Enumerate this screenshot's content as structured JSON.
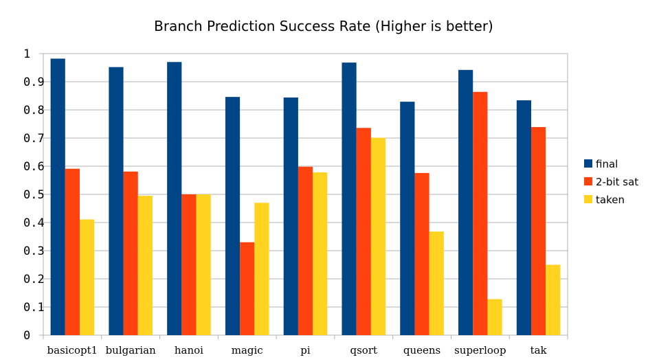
{
  "chart_data": {
    "type": "bar",
    "title": "Branch Prediction Success Rate (Higher is better)",
    "categories": [
      "basicopt1",
      "bulgarian",
      "hanoi",
      "magic",
      "pi",
      "qsort",
      "queens",
      "superloop",
      "tak"
    ],
    "series": [
      {
        "name": "final",
        "color": "#004586",
        "values": [
          0.982,
          0.952,
          0.97,
          0.846,
          0.844,
          0.968,
          0.829,
          0.942,
          0.834
        ]
      },
      {
        "name": "2-bit sat",
        "color": "#ff420e",
        "values": [
          0.591,
          0.581,
          0.5,
          0.33,
          0.598,
          0.736,
          0.576,
          0.864,
          0.739
        ]
      },
      {
        "name": "taken",
        "color": "#ffd320",
        "values": [
          0.411,
          0.495,
          0.5,
          0.47,
          0.578,
          0.701,
          0.368,
          0.128,
          0.25
        ]
      }
    ],
    "yticks": [
      "0",
      "0.1",
      "0.2",
      "0.3",
      "0.4",
      "0.5",
      "0.6",
      "0.7",
      "0.8",
      "0.9",
      "1"
    ],
    "ylim": [
      0,
      1
    ],
    "grid": true,
    "legend_position": "right"
  }
}
